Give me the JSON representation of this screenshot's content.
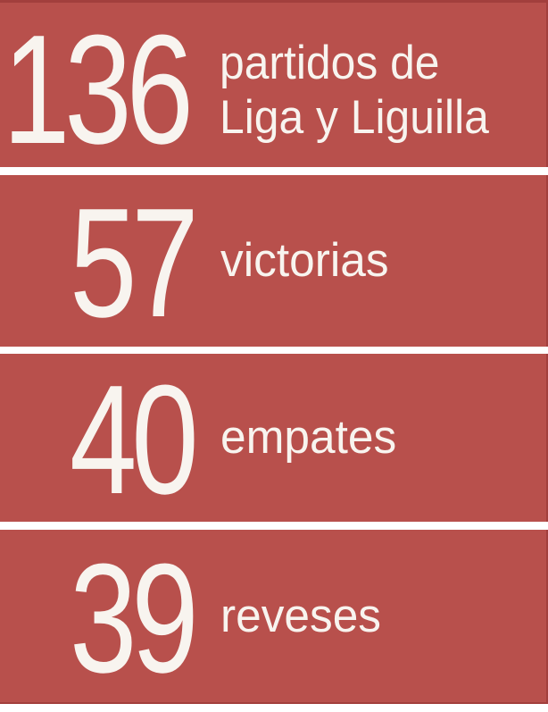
{
  "chart_data": {
    "type": "table",
    "title": "",
    "categories": [
      "partidos de Liga y Liguilla",
      "victorias",
      "empates",
      "reveses"
    ],
    "values": [
      136,
      57,
      40,
      39
    ],
    "layout": "stacked stat bands, numbers left, labels right",
    "legend_position": "none"
  },
  "colors": {
    "band_red": "#b8504c",
    "edge_dark_red": "#a23f3d",
    "divider_white": "#ffffff",
    "text_white": "#f8f4ef"
  },
  "stats": [
    {
      "value": "136",
      "label_lines": [
        "partidos de",
        "Liga y Liguilla"
      ]
    },
    {
      "value": "57",
      "label_lines": [
        "victorias"
      ]
    },
    {
      "value": "40",
      "label_lines": [
        "empates"
      ]
    },
    {
      "value": "39",
      "label_lines": [
        "reveses"
      ]
    }
  ]
}
